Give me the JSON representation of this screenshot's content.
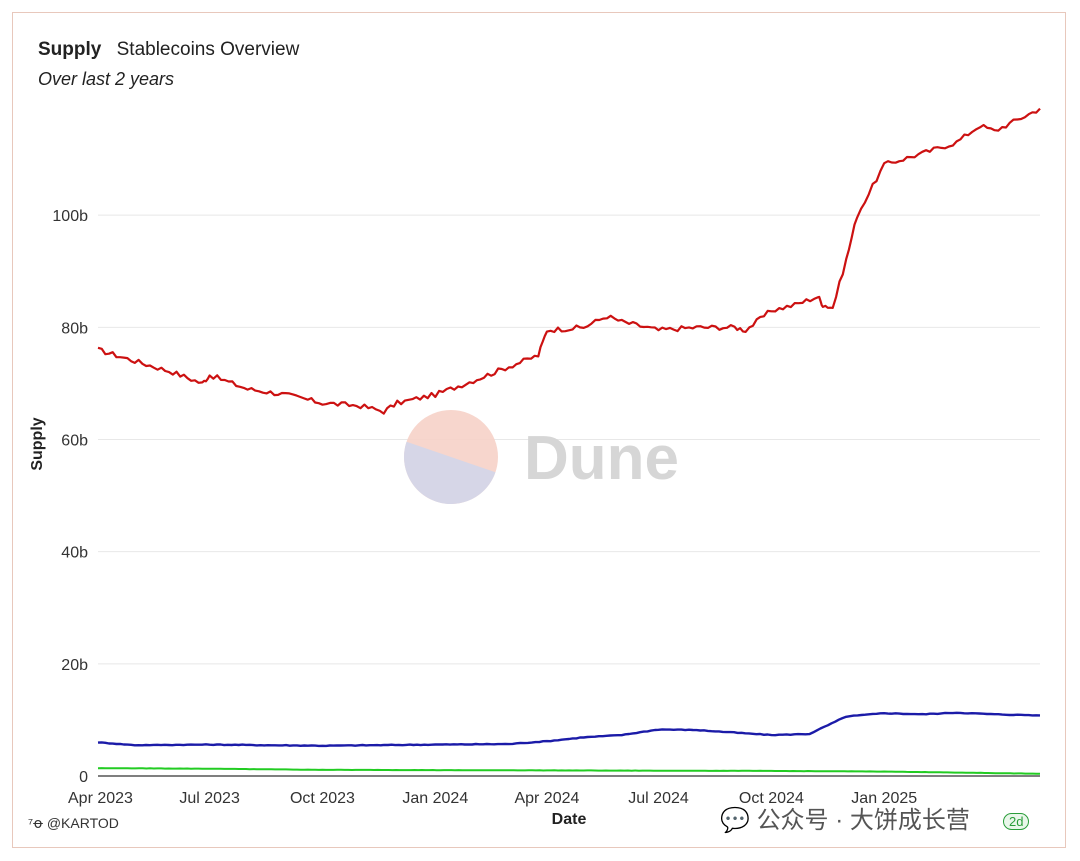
{
  "header": {
    "title": "Supply",
    "subtitle_inline": "Stablecoins Overview",
    "period": "Over last 2 years"
  },
  "footer": {
    "author": "@KARTOD",
    "author_icon": "dune-logo-icon",
    "watermark_text": "公众号 · 大饼成长营",
    "watermark_icon": "wechat-icon",
    "badge": "2d"
  },
  "watermark": {
    "text": "Dune"
  },
  "colors": {
    "red": "#cc1111",
    "blue": "#1b1ba8",
    "green": "#22cc22",
    "grid": "#e8e8e8",
    "logo_top": "#f6d2c8",
    "logo_bottom": "#d4d6e8"
  },
  "chart_data": {
    "type": "line",
    "title": "Supply",
    "subtitle": "Stablecoins Overview",
    "xlabel": "Date",
    "ylabel": "Supply",
    "x_range": [
      "2023-04-01",
      "2025-05-08"
    ],
    "ylim": [
      0,
      120
    ],
    "y_unit": "billions",
    "y_ticks": [
      "0",
      "20b",
      "40b",
      "60b",
      "80b",
      "100b"
    ],
    "y_tick_values": [
      0,
      20,
      40,
      60,
      80,
      100
    ],
    "x_ticks": [
      "Apr 2023",
      "Jul 2023",
      "Oct 2023",
      "Jan 2024",
      "Apr 2024",
      "Jul 2024",
      "Oct 2024",
      "Jan 2025"
    ],
    "x_tick_dates": [
      "2023-04-01",
      "2023-07-01",
      "2023-10-01",
      "2024-01-01",
      "2024-04-01",
      "2024-07-01",
      "2024-10-01",
      "2025-01-01"
    ],
    "grid": true,
    "legend": "none",
    "series": [
      {
        "color": "red",
        "x": [
          "2023-04-01",
          "2023-05-01",
          "2023-06-01",
          "2023-06-25",
          "2023-07-01",
          "2023-08-01",
          "2023-09-01",
          "2023-10-01",
          "2023-11-01",
          "2023-11-20",
          "2023-12-01",
          "2024-01-01",
          "2024-02-01",
          "2024-03-01",
          "2024-03-25",
          "2024-04-01",
          "2024-05-01",
          "2024-05-20",
          "2024-06-01",
          "2024-07-01",
          "2024-08-01",
          "2024-09-01",
          "2024-09-10",
          "2024-10-01",
          "2024-10-20",
          "2024-11-08",
          "2024-11-12",
          "2024-11-20",
          "2024-12-01",
          "2024-12-10",
          "2025-01-01",
          "2025-02-01",
          "2025-03-01",
          "2025-03-20",
          "2025-04-01",
          "2025-05-08"
        ],
        "values": [
          76,
          74,
          72,
          70,
          71.5,
          69,
          68,
          66.5,
          66,
          65,
          66.5,
          68,
          70.5,
          73,
          75,
          79.5,
          80,
          82,
          81,
          79.5,
          80,
          80,
          79.5,
          83,
          84,
          85.5,
          84,
          83.5,
          92,
          100,
          109,
          111,
          113,
          116,
          115,
          119
        ]
      },
      {
        "color": "blue",
        "x": [
          "2023-04-01",
          "2023-05-01",
          "2023-07-01",
          "2023-10-01",
          "2024-01-01",
          "2024-03-01",
          "2024-04-01",
          "2024-05-01",
          "2024-06-01",
          "2024-07-01",
          "2024-08-01",
          "2024-10-01",
          "2024-11-01",
          "2024-12-01",
          "2025-01-01",
          "2025-02-01",
          "2025-03-01",
          "2025-04-01",
          "2025-05-08"
        ],
        "values": [
          6.0,
          5.5,
          5.6,
          5.4,
          5.6,
          5.7,
          6.2,
          6.9,
          7.3,
          8.3,
          8.2,
          7.3,
          7.5,
          10.6,
          11.2,
          11.0,
          11.3,
          11.0,
          10.8
        ]
      },
      {
        "color": "green",
        "x": [
          "2023-04-01",
          "2023-07-01",
          "2023-10-01",
          "2024-04-01",
          "2024-10-01",
          "2025-01-01",
          "2025-05-08"
        ],
        "values": [
          1.4,
          1.3,
          1.1,
          1.0,
          0.9,
          0.8,
          0.4
        ]
      }
    ]
  }
}
